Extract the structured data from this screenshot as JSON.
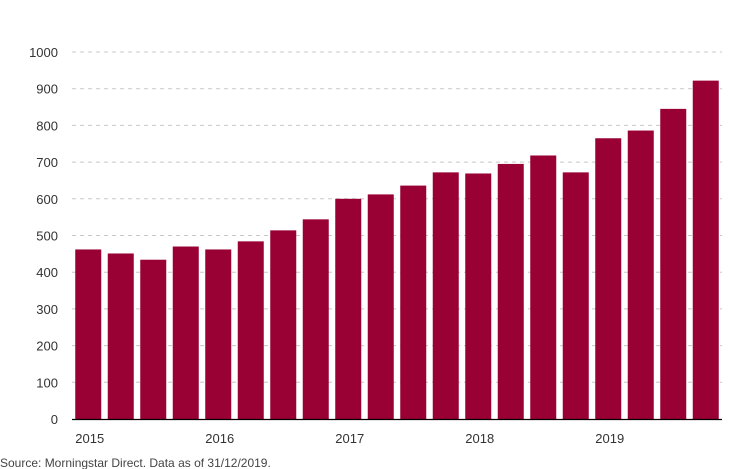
{
  "chart_data": {
    "type": "bar",
    "title": "",
    "xlabel": "",
    "ylabel": "",
    "ylim": [
      0,
      1000
    ],
    "yticks": [
      0,
      100,
      200,
      300,
      400,
      500,
      600,
      700,
      800,
      900,
      1000
    ],
    "grid": true,
    "legend": "none",
    "bar_color": "#990033",
    "categories": [
      "2015 Q1",
      "2015 Q2",
      "2015 Q3",
      "2015 Q4",
      "2016 Q1",
      "2016 Q2",
      "2016 Q3",
      "2016 Q4",
      "2017 Q1",
      "2017 Q2",
      "2017 Q3",
      "2017 Q4",
      "2018 Q1",
      "2018 Q2",
      "2018 Q3",
      "2018 Q4",
      "2019 Q1",
      "2019 Q2",
      "2019 Q3",
      "2019 Q4"
    ],
    "values": [
      462,
      451,
      434,
      470,
      462,
      484,
      514,
      544,
      600,
      612,
      636,
      672,
      669,
      695,
      718,
      672,
      765,
      786,
      845,
      922
    ],
    "x_tick_labels": [
      {
        "label": "2015",
        "index": 0
      },
      {
        "label": "2016",
        "index": 4
      },
      {
        "label": "2017",
        "index": 8
      },
      {
        "label": "2018",
        "index": 12
      },
      {
        "label": "2019",
        "index": 16
      }
    ]
  },
  "source_note": "Source: Morningstar Direct. Data as of 31/12/2019."
}
